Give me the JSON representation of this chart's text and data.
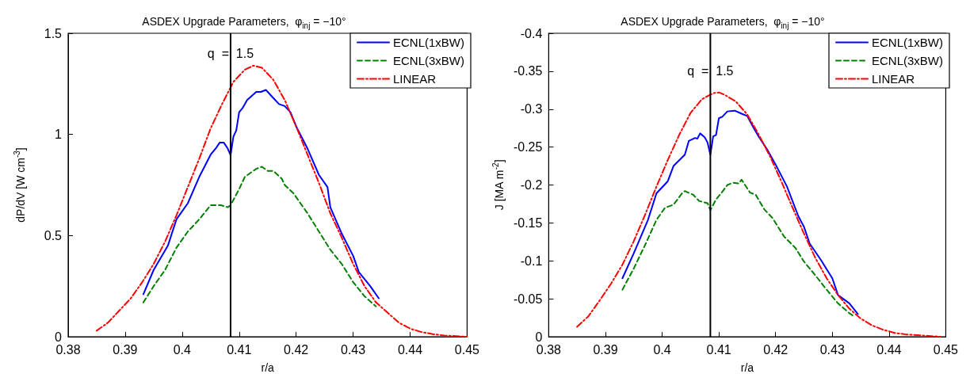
{
  "chart_data": [
    {
      "type": "line",
      "title": "ASDEX Upgrade Parameters,  φ$_{inj}$ = −10°",
      "xlabel": "r/a",
      "ylabel": "dP/dV [W cm$^{-3}$]",
      "xlim": [
        0.38,
        0.45
      ],
      "xticks": [
        0.38,
        0.39,
        0.4,
        0.41,
        0.42,
        0.43,
        0.44,
        0.45
      ],
      "ylim": [
        0,
        1.5
      ],
      "yticks": [
        0,
        0.5,
        1,
        1.5
      ],
      "grid": false,
      "legend": "top right",
      "ref_lines": [
        {
          "axis": "x",
          "value": 0.4085,
          "color": "#000000"
        }
      ],
      "annotations": [
        {
          "text": "q  =  1.5",
          "x": 0.4085,
          "y": 1.4
        }
      ],
      "series": [
        {
          "name": "ECNL(1xBW)",
          "color": "#0000ff",
          "line_style": "solid",
          "x": [
            0.3932,
            0.395,
            0.3975,
            0.399,
            0.401,
            0.403,
            0.405,
            0.406,
            0.4066,
            0.4073,
            0.408,
            0.4085,
            0.409,
            0.4095,
            0.41,
            0.4106,
            0.4114,
            0.413,
            0.4138,
            0.4147,
            0.416,
            0.417,
            0.418,
            0.419,
            0.42,
            0.422,
            0.424,
            0.4255,
            0.426,
            0.428,
            0.43,
            0.431,
            0.433,
            0.4345
          ],
          "values": [
            0.21,
            0.33,
            0.45,
            0.58,
            0.66,
            0.79,
            0.9,
            0.935,
            0.96,
            0.96,
            0.93,
            0.897,
            0.99,
            1.02,
            1.11,
            1.13,
            1.17,
            1.21,
            1.21,
            1.22,
            1.18,
            1.15,
            1.14,
            1.11,
            1.04,
            0.93,
            0.8,
            0.74,
            0.64,
            0.51,
            0.4,
            0.32,
            0.25,
            0.19
          ]
        },
        {
          "name": "ECNL(3xBW)",
          "color": "#008000",
          "line_style": "dashed",
          "x": [
            0.3932,
            0.395,
            0.397,
            0.399,
            0.401,
            0.403,
            0.405,
            0.4068,
            0.408,
            0.4085,
            0.41,
            0.411,
            0.413,
            0.414,
            0.415,
            0.416,
            0.4175,
            0.418,
            0.4195,
            0.422,
            0.424,
            0.426,
            0.428,
            0.43,
            0.432,
            0.434
          ],
          "values": [
            0.17,
            0.25,
            0.33,
            0.44,
            0.52,
            0.58,
            0.65,
            0.65,
            0.64,
            0.65,
            0.73,
            0.79,
            0.83,
            0.84,
            0.82,
            0.82,
            0.78,
            0.75,
            0.71,
            0.61,
            0.52,
            0.43,
            0.36,
            0.27,
            0.2,
            0.15
          ]
        },
        {
          "name": "LINEAR",
          "color": "#ff0000",
          "line_style": "dashdot",
          "x": [
            0.385,
            0.387,
            0.389,
            0.391,
            0.393,
            0.395,
            0.397,
            0.399,
            0.401,
            0.403,
            0.405,
            0.407,
            0.409,
            0.411,
            0.4125,
            0.414,
            0.416,
            0.418,
            0.42,
            0.422,
            0.424,
            0.426,
            0.428,
            0.43,
            0.432,
            0.434,
            0.436,
            0.438,
            0.44,
            0.442,
            0.444,
            0.446,
            0.448,
            0.45
          ],
          "values": [
            0.03,
            0.07,
            0.13,
            0.19,
            0.27,
            0.36,
            0.47,
            0.6,
            0.74,
            0.88,
            1.03,
            1.15,
            1.26,
            1.32,
            1.34,
            1.33,
            1.27,
            1.17,
            1.04,
            0.9,
            0.76,
            0.61,
            0.49,
            0.36,
            0.25,
            0.17,
            0.12,
            0.07,
            0.04,
            0.023,
            0.013,
            0.006,
            0.003,
            0
          ]
        }
      ]
    },
    {
      "type": "line",
      "title": "ASDEX Upgrade Parameters,  φ$_{inj}$ = −10°",
      "xlabel": "r/a",
      "ylabel": "J [MA m$^{-2}$]",
      "xlim": [
        0.38,
        0.45
      ],
      "xticks": [
        0.38,
        0.39,
        0.4,
        0.41,
        0.42,
        0.43,
        0.44,
        0.45
      ],
      "ylim": [
        0,
        -0.4
      ],
      "yticks": [
        0,
        -0.05,
        -0.1,
        -0.15,
        -0.2,
        -0.25,
        -0.3,
        -0.35,
        -0.4
      ],
      "grid": false,
      "legend": "top right",
      "ref_lines": [
        {
          "axis": "x",
          "value": 0.4085,
          "color": "#000000"
        }
      ],
      "annotations": [
        {
          "text": "q  =  1.5",
          "x": 0.4085,
          "y": -0.35
        }
      ],
      "series": [
        {
          "name": "ECNL(1xBW)",
          "color": "#0000ff",
          "line_style": "solid",
          "x": [
            0.393,
            0.395,
            0.3975,
            0.399,
            0.401,
            0.402,
            0.404,
            0.4047,
            0.4058,
            0.4062,
            0.4067,
            0.4075,
            0.408,
            0.4085,
            0.409,
            0.4095,
            0.41,
            0.4106,
            0.4115,
            0.4128,
            0.414,
            0.415,
            0.416,
            0.417,
            0.4185,
            0.42,
            0.422,
            0.424,
            0.425,
            0.426,
            0.428,
            0.43,
            0.431,
            0.433,
            0.4345
          ],
          "values": [
            -0.077,
            -0.11,
            -0.154,
            -0.189,
            -0.205,
            -0.225,
            -0.24,
            -0.258,
            -0.262,
            -0.261,
            -0.268,
            -0.263,
            -0.256,
            -0.24,
            -0.264,
            -0.266,
            -0.288,
            -0.29,
            -0.297,
            -0.298,
            -0.294,
            -0.291,
            -0.277,
            -0.264,
            -0.247,
            -0.227,
            -0.198,
            -0.159,
            -0.145,
            -0.123,
            -0.101,
            -0.077,
            -0.055,
            -0.044,
            -0.03
          ]
        },
        {
          "name": "ECNL(3xBW)",
          "color": "#008000",
          "line_style": "dashed",
          "x": [
            0.393,
            0.395,
            0.397,
            0.399,
            0.4005,
            0.402,
            0.4035,
            0.404,
            0.4055,
            0.4065,
            0.408,
            0.4085,
            0.4095,
            0.4105,
            0.4115,
            0.4125,
            0.4135,
            0.414,
            0.4155,
            0.4165,
            0.418,
            0.4195,
            0.4215,
            0.4235,
            0.425,
            0.427,
            0.429,
            0.431,
            0.433,
            0.434
          ],
          "values": [
            -0.062,
            -0.09,
            -0.121,
            -0.154,
            -0.17,
            -0.174,
            -0.189,
            -0.192,
            -0.187,
            -0.179,
            -0.176,
            -0.167,
            -0.181,
            -0.19,
            -0.2,
            -0.203,
            -0.202,
            -0.207,
            -0.19,
            -0.187,
            -0.168,
            -0.156,
            -0.132,
            -0.117,
            -0.099,
            -0.081,
            -0.062,
            -0.044,
            -0.031,
            -0.026
          ]
        },
        {
          "name": "LINEAR",
          "color": "#ff0000",
          "line_style": "dashdot",
          "x": [
            0.385,
            0.387,
            0.389,
            0.391,
            0.393,
            0.395,
            0.397,
            0.399,
            0.401,
            0.403,
            0.405,
            0.407,
            0.409,
            0.41,
            0.411,
            0.413,
            0.415,
            0.417,
            0.419,
            0.421,
            0.423,
            0.425,
            0.427,
            0.429,
            0.431,
            0.433,
            0.435,
            0.437,
            0.439,
            0.441,
            0.443,
            0.445,
            0.447,
            0.449
          ],
          "values": [
            -0.013,
            -0.027,
            -0.048,
            -0.07,
            -0.095,
            -0.126,
            -0.161,
            -0.198,
            -0.233,
            -0.266,
            -0.295,
            -0.313,
            -0.321,
            -0.322,
            -0.319,
            -0.31,
            -0.293,
            -0.267,
            -0.238,
            -0.205,
            -0.17,
            -0.136,
            -0.104,
            -0.077,
            -0.055,
            -0.037,
            -0.024,
            -0.015,
            -0.009,
            -0.005,
            -0.003,
            -0.002,
            -0.001,
            0
          ]
        }
      ]
    }
  ]
}
